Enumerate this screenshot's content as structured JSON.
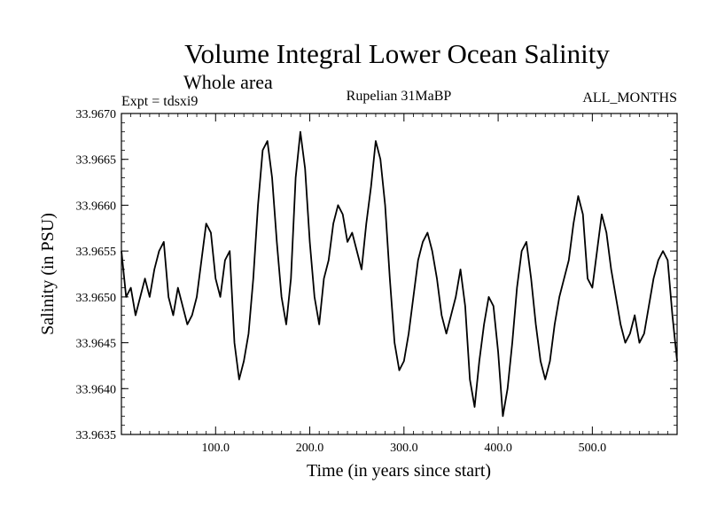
{
  "chart_data": {
    "type": "line",
    "title": "Volume Integral Lower Ocean Salinity",
    "subtitle": "Whole area",
    "annotations": {
      "left": "Expt = tdsxi9",
      "center": "Rupelian  31MaBP",
      "right": "ALL_MONTHS"
    },
    "xlabel": "Time (in years since start)",
    "ylabel": "Salinity (in PSU)",
    "xlim": [
      0,
      590
    ],
    "ylim": [
      33.9635,
      33.967
    ],
    "xticks": [
      100,
      200,
      300,
      400,
      500
    ],
    "xtick_labels": [
      "100.0",
      "200.0",
      "300.0",
      "400.0",
      "500.0"
    ],
    "yticks": [
      33.9635,
      33.964,
      33.9645,
      33.965,
      33.9655,
      33.966,
      33.9665,
      33.967
    ],
    "ytick_labels": [
      "33.9635",
      "33.9640",
      "33.9645",
      "33.9650",
      "33.9655",
      "33.9660",
      "33.9665",
      "33.9670"
    ],
    "grid": false,
    "series": [
      {
        "name": "salinity",
        "x": [
          0,
          5,
          10,
          15,
          20,
          25,
          30,
          35,
          40,
          45,
          50,
          55,
          60,
          65,
          70,
          75,
          80,
          85,
          90,
          95,
          100,
          105,
          110,
          115,
          120,
          125,
          130,
          135,
          140,
          145,
          150,
          155,
          160,
          165,
          170,
          175,
          180,
          185,
          190,
          195,
          200,
          205,
          210,
          215,
          220,
          225,
          230,
          235,
          240,
          245,
          250,
          255,
          260,
          265,
          270,
          275,
          280,
          285,
          290,
          295,
          300,
          305,
          310,
          315,
          320,
          325,
          330,
          335,
          340,
          345,
          350,
          355,
          360,
          365,
          370,
          375,
          380,
          385,
          390,
          395,
          400,
          405,
          410,
          415,
          420,
          425,
          430,
          435,
          440,
          445,
          450,
          455,
          460,
          465,
          470,
          475,
          480,
          485,
          490,
          495,
          500,
          505,
          510,
          515,
          520,
          525,
          530,
          535,
          540,
          545,
          550,
          555,
          560,
          565,
          570,
          575,
          580,
          585,
          590
        ],
        "values": [
          33.9655,
          33.965,
          33.9651,
          33.9648,
          33.965,
          33.9652,
          33.965,
          33.9653,
          33.9655,
          33.9656,
          33.965,
          33.9648,
          33.9651,
          33.9649,
          33.9647,
          33.9648,
          33.965,
          33.9654,
          33.9658,
          33.9657,
          33.9652,
          33.965,
          33.9654,
          33.9655,
          33.9645,
          33.9641,
          33.9643,
          33.9646,
          33.9652,
          33.966,
          33.9666,
          33.9667,
          33.9663,
          33.9656,
          33.965,
          33.9647,
          33.9652,
          33.9663,
          33.9668,
          33.9664,
          33.9656,
          33.965,
          33.9647,
          33.9652,
          33.9654,
          33.9658,
          33.966,
          33.9659,
          33.9656,
          33.9657,
          33.9655,
          33.9653,
          33.9658,
          33.9662,
          33.9667,
          33.9665,
          33.966,
          33.9652,
          33.9645,
          33.9642,
          33.9643,
          33.9646,
          33.965,
          33.9654,
          33.9656,
          33.9657,
          33.9655,
          33.9652,
          33.9648,
          33.9646,
          33.9648,
          33.965,
          33.9653,
          33.9649,
          33.9641,
          33.9638,
          33.9643,
          33.9647,
          33.965,
          33.9649,
          33.9644,
          33.9637,
          33.964,
          33.9645,
          33.9651,
          33.9655,
          33.9656,
          33.9652,
          33.9647,
          33.9643,
          33.9641,
          33.9643,
          33.9647,
          33.965,
          33.9652,
          33.9654,
          33.9658,
          33.9661,
          33.9659,
          33.9652,
          33.9651,
          33.9655,
          33.9659,
          33.9657,
          33.9653,
          33.965,
          33.9647,
          33.9645,
          33.9646,
          33.9648,
          33.9645,
          33.9646,
          33.9649,
          33.9652,
          33.9654,
          33.9655,
          33.9654,
          33.9648,
          33.9643
        ]
      }
    ]
  }
}
